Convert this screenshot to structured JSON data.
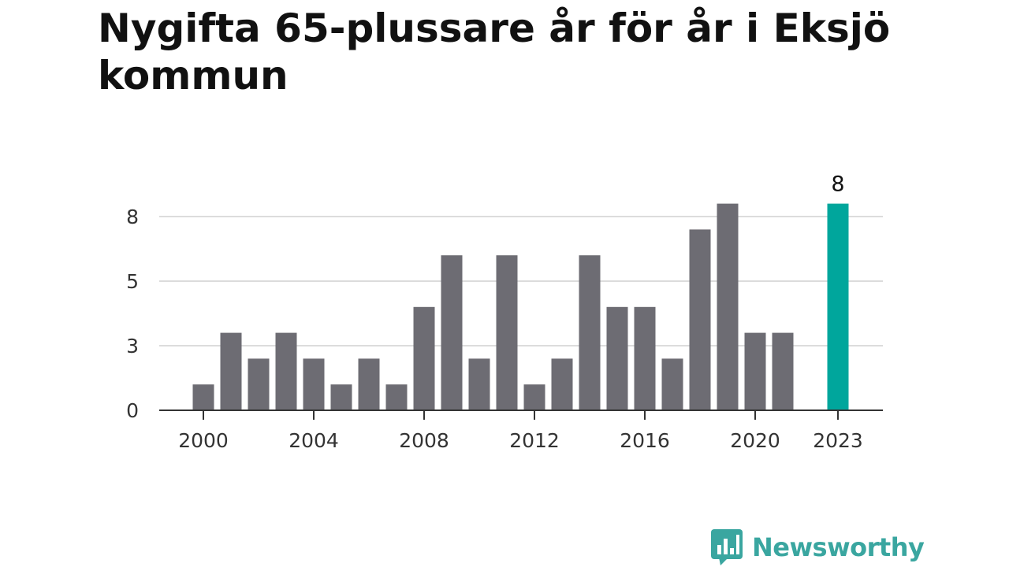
{
  "title": "Nygifta 65-plussare år för år i Eksjö kommun",
  "brand": {
    "name": "Newsworthy",
    "color": "#3aa6a0",
    "icon": "bar-chart-speech-bubble-icon"
  },
  "chart_data": {
    "type": "bar",
    "title": "Nygifta 65-plussare år för år i Eksjö kommun",
    "xlabel": "",
    "ylabel": "",
    "ylim": [
      0,
      10.2
    ],
    "grid": true,
    "legend": "none",
    "y_ticks": [
      {
        "value": 0,
        "label": "0"
      },
      {
        "value": 2.5,
        "label": "3"
      },
      {
        "value": 5,
        "label": "5"
      },
      {
        "value": 7.5,
        "label": "8"
      }
    ],
    "x_tick_labels": [
      {
        "year": 2000,
        "label": "2000"
      },
      {
        "year": 2004,
        "label": "2004"
      },
      {
        "year": 2008,
        "label": "2008"
      },
      {
        "year": 2012,
        "label": "2012"
      },
      {
        "year": 2016,
        "label": "2016"
      },
      {
        "year": 2020,
        "label": "2020"
      },
      {
        "year": 2023,
        "label": "2023"
      }
    ],
    "categories": [
      2000,
      2001,
      2002,
      2003,
      2004,
      2005,
      2006,
      2007,
      2008,
      2009,
      2010,
      2011,
      2012,
      2013,
      2014,
      2015,
      2016,
      2017,
      2018,
      2019,
      2020,
      2021,
      2023
    ],
    "values": [
      1,
      3,
      2,
      3,
      2,
      1,
      2,
      1,
      4,
      6,
      2,
      6,
      1,
      2,
      6,
      4,
      4,
      2,
      7,
      8,
      3,
      3,
      8
    ],
    "bar_color": "#6d6c73",
    "highlight": {
      "year": 2023,
      "color": "#00a69c",
      "label": "8"
    }
  }
}
